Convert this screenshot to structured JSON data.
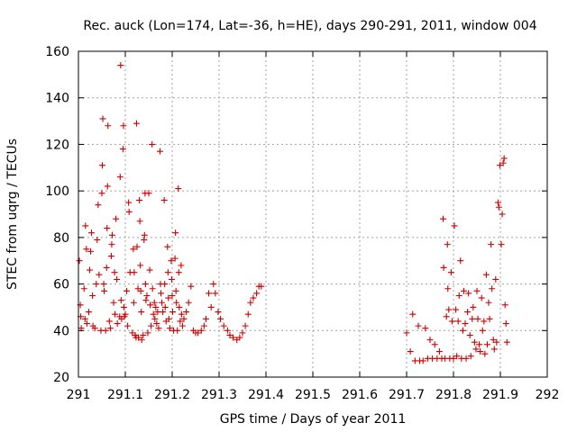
{
  "chart_data": {
    "type": "scatter",
    "title": "Rec. auck (Lon=174, Lat=-36, h=HE), days 290-291, 2011, window 004",
    "xlabel": "GPS time / Days of year 2011",
    "ylabel": "STEC from uqrg / TECUs",
    "xlim": [
      291,
      292
    ],
    "ylim": [
      20,
      160
    ],
    "x_ticks": [
      291,
      291.1,
      291.2,
      291.3,
      291.4,
      291.5,
      291.6,
      291.7,
      291.8,
      291.9,
      292
    ],
    "x_tick_labels": [
      "291",
      "291.1",
      "291.2",
      "291.3",
      "291.4",
      "291.5",
      "291.6",
      "291.7",
      "291.8",
      "291.9",
      "292"
    ],
    "y_ticks": [
      20,
      40,
      60,
      80,
      100,
      120,
      140,
      160
    ],
    "y_tick_labels": [
      "20",
      "40",
      "60",
      "80",
      "100",
      "120",
      "140",
      "160"
    ],
    "grid": true,
    "marker": "+",
    "color": "#cc0000",
    "points": [
      [
        291.002,
        70
      ],
      [
        291.004,
        51
      ],
      [
        291.005,
        46
      ],
      [
        291.006,
        41
      ],
      [
        291.012,
        58
      ],
      [
        291.014,
        45
      ],
      [
        291.015,
        85
      ],
      [
        291.017,
        75
      ],
      [
        291.018,
        43
      ],
      [
        291.022,
        48
      ],
      [
        291.024,
        66
      ],
      [
        291.026,
        74
      ],
      [
        291.028,
        82
      ],
      [
        291.03,
        55
      ],
      [
        291.031,
        42
      ],
      [
        291.035,
        41
      ],
      [
        291.038,
        60
      ],
      [
        291.04,
        79
      ],
      [
        291.042,
        94
      ],
      [
        291.044,
        64
      ],
      [
        291.048,
        40
      ],
      [
        291.05,
        99
      ],
      [
        291.051,
        111
      ],
      [
        291.052,
        131
      ],
      [
        291.054,
        60
      ],
      [
        291.055,
        57
      ],
      [
        291.058,
        40
      ],
      [
        291.06,
        67
      ],
      [
        291.061,
        84
      ],
      [
        291.062,
        102
      ],
      [
        291.063,
        128
      ],
      [
        291.066,
        44
      ],
      [
        291.068,
        41
      ],
      [
        291.07,
        72
      ],
      [
        291.071,
        77
      ],
      [
        291.072,
        81
      ],
      [
        291.075,
        52
      ],
      [
        291.077,
        65
      ],
      [
        291.078,
        47
      ],
      [
        291.08,
        88
      ],
      [
        291.082,
        62
      ],
      [
        291.083,
        43
      ],
      [
        291.088,
        46
      ],
      [
        291.089,
        106
      ],
      [
        291.09,
        154
      ],
      [
        291.091,
        53
      ],
      [
        291.092,
        45
      ],
      [
        291.095,
        118
      ],
      [
        291.096,
        128
      ],
      [
        291.097,
        50
      ],
      [
        291.098,
        46
      ],
      [
        291.1,
        47
      ],
      [
        291.103,
        57
      ],
      [
        291.105,
        42
      ],
      [
        291.107,
        95
      ],
      [
        291.108,
        91
      ],
      [
        291.11,
        65
      ],
      [
        291.115,
        39
      ],
      [
        291.117,
        75
      ],
      [
        291.118,
        52
      ],
      [
        291.119,
        65
      ],
      [
        291.121,
        38
      ],
      [
        291.123,
        37
      ],
      [
        291.124,
        129
      ],
      [
        291.125,
        76
      ],
      [
        291.127,
        58
      ],
      [
        291.128,
        37
      ],
      [
        291.13,
        96
      ],
      [
        291.131,
        87
      ],
      [
        291.132,
        68
      ],
      [
        291.133,
        57
      ],
      [
        291.134,
        48
      ],
      [
        291.135,
        36
      ],
      [
        291.138,
        38
      ],
      [
        291.14,
        79
      ],
      [
        291.141,
        81
      ],
      [
        291.142,
        99
      ],
      [
        291.143,
        60
      ],
      [
        291.144,
        53
      ],
      [
        291.146,
        55
      ],
      [
        291.148,
        39
      ],
      [
        291.15,
        99
      ],
      [
        291.152,
        66
      ],
      [
        291.153,
        51
      ],
      [
        291.155,
        42
      ],
      [
        291.157,
        120
      ],
      [
        291.158,
        58
      ],
      [
        291.16,
        47
      ],
      [
        291.162,
        52
      ],
      [
        291.163,
        45
      ],
      [
        291.165,
        50
      ],
      [
        291.167,
        43
      ],
      [
        291.169,
        48
      ],
      [
        291.171,
        41
      ],
      [
        291.174,
        117
      ],
      [
        291.175,
        60
      ],
      [
        291.176,
        56
      ],
      [
        291.178,
        52
      ],
      [
        291.18,
        48
      ],
      [
        291.183,
        96
      ],
      [
        291.184,
        60
      ],
      [
        291.185,
        50
      ],
      [
        291.187,
        44
      ],
      [
        291.19,
        76
      ],
      [
        291.191,
        65
      ],
      [
        291.192,
        54
      ],
      [
        291.193,
        45
      ],
      [
        291.195,
        41
      ],
      [
        291.198,
        70
      ],
      [
        291.199,
        62
      ],
      [
        291.2,
        55
      ],
      [
        291.201,
        48
      ],
      [
        291.203,
        40
      ],
      [
        291.206,
        71
      ],
      [
        291.207,
        82
      ],
      [
        291.208,
        57
      ],
      [
        291.209,
        52
      ],
      [
        291.211,
        40
      ],
      [
        291.213,
        101
      ],
      [
        291.214,
        65
      ],
      [
        291.215,
        50
      ],
      [
        291.217,
        44
      ],
      [
        291.219,
        68
      ],
      [
        291.22,
        47
      ],
      [
        291.222,
        42
      ],
      [
        291.225,
        45
      ],
      [
        291.23,
        48
      ],
      [
        291.235,
        52
      ],
      [
        291.24,
        59
      ],
      [
        291.245,
        40
      ],
      [
        291.25,
        39
      ],
      [
        291.255,
        39
      ],
      [
        291.262,
        40
      ],
      [
        291.268,
        42
      ],
      [
        291.272,
        45
      ],
      [
        291.278,
        56
      ],
      [
        291.283,
        50
      ],
      [
        291.288,
        60
      ],
      [
        291.292,
        56
      ],
      [
        291.298,
        48
      ],
      [
        291.303,
        45
      ],
      [
        291.31,
        42
      ],
      [
        291.318,
        40
      ],
      [
        291.323,
        38
      ],
      [
        291.33,
        37
      ],
      [
        291.338,
        36
      ],
      [
        291.344,
        37
      ],
      [
        291.35,
        39
      ],
      [
        291.356,
        42
      ],
      [
        291.362,
        47
      ],
      [
        291.367,
        52
      ],
      [
        291.373,
        54
      ],
      [
        291.38,
        56
      ],
      [
        291.385,
        59
      ],
      [
        291.39,
        59
      ],
      [
        291.7,
        39
      ],
      [
        291.708,
        31
      ],
      [
        291.713,
        47
      ],
      [
        291.718,
        27
      ],
      [
        291.725,
        42
      ],
      [
        291.728,
        27
      ],
      [
        291.735,
        27
      ],
      [
        291.74,
        41
      ],
      [
        291.745,
        28
      ],
      [
        291.75,
        36
      ],
      [
        291.755,
        28
      ],
      [
        291.76,
        34
      ],
      [
        291.765,
        28
      ],
      [
        291.77,
        31
      ],
      [
        291.775,
        28
      ],
      [
        291.778,
        88
      ],
      [
        291.779,
        67
      ],
      [
        291.782,
        28
      ],
      [
        291.785,
        46
      ],
      [
        291.787,
        77
      ],
      [
        291.788,
        58
      ],
      [
        291.79,
        49
      ],
      [
        291.792,
        28
      ],
      [
        291.795,
        65
      ],
      [
        291.797,
        44
      ],
      [
        291.8,
        28
      ],
      [
        291.802,
        85
      ],
      [
        291.805,
        49
      ],
      [
        291.807,
        29
      ],
      [
        291.81,
        44
      ],
      [
        291.812,
        55
      ],
      [
        291.815,
        70
      ],
      [
        291.817,
        28
      ],
      [
        291.82,
        40
      ],
      [
        291.822,
        57
      ],
      [
        291.825,
        43
      ],
      [
        291.827,
        28
      ],
      [
        291.83,
        48
      ],
      [
        291.832,
        56
      ],
      [
        291.835,
        38
      ],
      [
        291.837,
        29
      ],
      [
        291.84,
        45
      ],
      [
        291.842,
        50
      ],
      [
        291.845,
        35
      ],
      [
        291.848,
        32
      ],
      [
        291.85,
        57
      ],
      [
        291.852,
        45
      ],
      [
        291.855,
        34
      ],
      [
        291.857,
        31
      ],
      [
        291.86,
        54
      ],
      [
        291.862,
        40
      ],
      [
        291.865,
        44
      ],
      [
        291.867,
        30
      ],
      [
        291.87,
        64
      ],
      [
        291.872,
        34
      ],
      [
        291.875,
        52
      ],
      [
        291.877,
        45
      ],
      [
        291.88,
        77
      ],
      [
        291.882,
        58
      ],
      [
        291.885,
        36
      ],
      [
        291.887,
        32
      ],
      [
        291.89,
        62
      ],
      [
        291.892,
        35
      ],
      [
        291.895,
        95
      ],
      [
        291.897,
        93
      ],
      [
        291.899,
        111
      ],
      [
        291.902,
        77
      ],
      [
        291.904,
        90
      ],
      [
        291.906,
        112
      ],
      [
        291.908,
        114
      ],
      [
        291.91,
        51
      ],
      [
        291.912,
        43
      ],
      [
        291.914,
        35
      ]
    ]
  }
}
